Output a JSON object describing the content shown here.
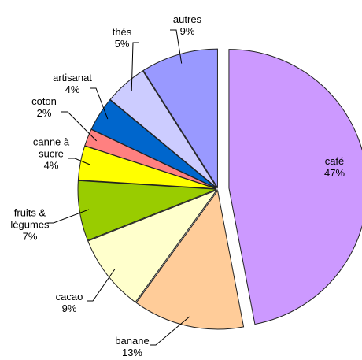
{
  "chart_data": {
    "type": "pie",
    "categories": [
      "café",
      "banane",
      "cacao",
      "fruits & légumes",
      "canne à sucre",
      "coton",
      "artisanat",
      "thés",
      "autres"
    ],
    "values": [
      47,
      13,
      9,
      7,
      4,
      2,
      4,
      5,
      9
    ],
    "value_labels": [
      "47%",
      "13%",
      "9%",
      "7%",
      "4%",
      "2%",
      "4%",
      "5%",
      "9%"
    ],
    "colors": [
      "#cc99ff",
      "#ffcc99",
      "#ffffcc",
      "#99cc00",
      "#ffff00",
      "#ff8080",
      "#0066cc",
      "#ccccff",
      "#9999ff"
    ]
  }
}
